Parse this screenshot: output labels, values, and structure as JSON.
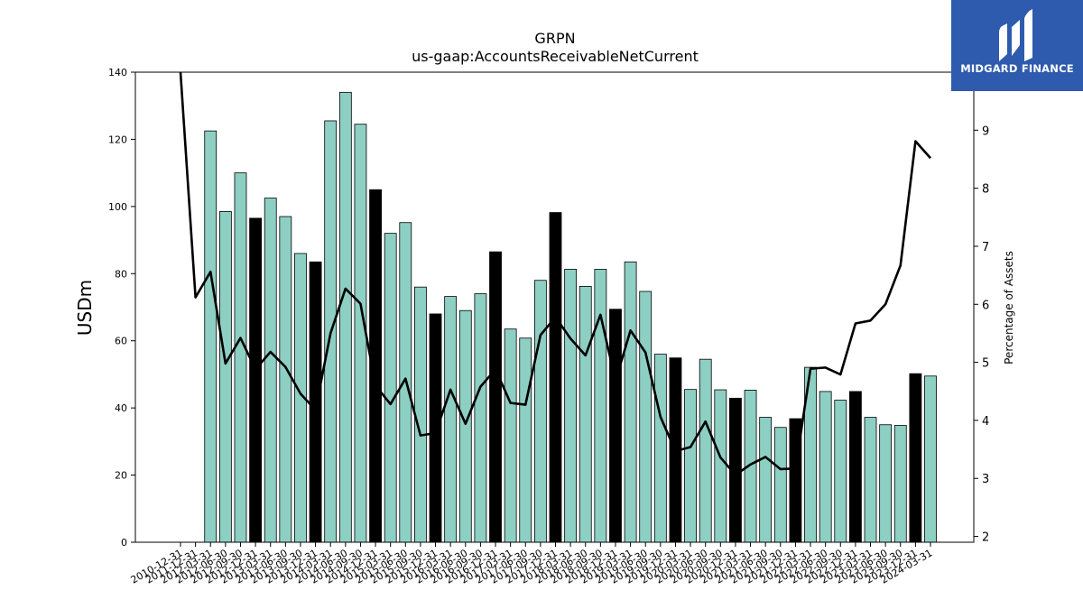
{
  "logo": {
    "text": "MIDGARD FINANCE",
    "icon": "midgard-m-icon",
    "bg_color": "#2e5bad"
  },
  "chart_data": {
    "type": "bar",
    "title": "GRPN",
    "subtitle": "us-gaap:AccountsReceivableNetCurrent",
    "ylabel": "USDm",
    "y2label": "Percentage of Assets",
    "ylim": [
      0,
      140
    ],
    "y2lim": [
      1.9,
      10.0
    ],
    "yticks": [
      0,
      20,
      40,
      60,
      80,
      100,
      120,
      140
    ],
    "y2ticks": [
      2,
      3,
      4,
      5,
      6,
      7,
      8,
      9
    ],
    "grid": false,
    "bar_color": "#8ecfc4",
    "q4_bar_color": "#000000",
    "line_color": "#000000",
    "categories": [
      "2010-12-31",
      "2011-12-31",
      "2012-03-31",
      "2012-06-30",
      "2012-09-30",
      "2012-12-31",
      "2013-03-31",
      "2013-06-30",
      "2013-09-30",
      "2013-12-31",
      "2014-03-31",
      "2014-06-30",
      "2014-09-30",
      "2014-12-31",
      "2015-03-31",
      "2015-06-30",
      "2015-09-30",
      "2015-12-31",
      "2016-03-31",
      "2016-06-30",
      "2016-09-30",
      "2016-12-31",
      "2017-03-31",
      "2017-06-30",
      "2017-09-30",
      "2017-12-31",
      "2018-03-31",
      "2018-06-30",
      "2018-09-30",
      "2018-12-31",
      "2019-03-31",
      "2019-06-30",
      "2019-09-30",
      "2019-12-31",
      "2020-03-31",
      "2020-06-30",
      "2020-09-30",
      "2020-12-31",
      "2021-03-31",
      "2021-06-30",
      "2021-09-30",
      "2021-12-31",
      "2022-03-31",
      "2022-06-30",
      "2022-09-30",
      "2022-12-31",
      "2023-03-31",
      "2023-06-30",
      "2023-09-30",
      "2023-12-31",
      "2024-03-31"
    ],
    "series": [
      {
        "type": "bar",
        "values": [
          null,
          null,
          122.5,
          98.5,
          110,
          96.5,
          102.5,
          97,
          86,
          83.5,
          125.5,
          134,
          124.5,
          105,
          92,
          95.2,
          76,
          68,
          73.2,
          69,
          74,
          86.5,
          63.5,
          60.8,
          78,
          98.2,
          81.3,
          76.2,
          81.3,
          69.4,
          83.5,
          74.7,
          56,
          54.9,
          45.5,
          54.5,
          45.4,
          42.9,
          45.3,
          37.2,
          34.2,
          36.8,
          52.1,
          44.9,
          42.3,
          44.9,
          37.2,
          35,
          34.8,
          50.2,
          49.5
        ],
        "highlight_q4": true
      },
      {
        "type": "line",
        "axis": "right",
        "values": [
          10.0,
          6.12,
          6.56,
          4.98,
          5.42,
          4.88,
          5.18,
          4.92,
          4.46,
          4.18,
          5.5,
          6.27,
          6.01,
          4.6,
          4.28,
          4.72,
          3.74,
          3.78,
          4.53,
          3.94,
          4.58,
          4.88,
          4.3,
          4.27,
          5.47,
          5.78,
          5.41,
          5.12,
          5.82,
          4.68,
          5.55,
          5.17,
          4.06,
          3.47,
          3.54,
          3.98,
          3.36,
          3.06,
          3.24,
          3.37,
          3.16,
          3.17,
          4.89,
          4.91,
          4.79,
          5.67,
          5.72,
          6.0,
          6.67,
          8.81,
          8.52
        ]
      }
    ]
  }
}
